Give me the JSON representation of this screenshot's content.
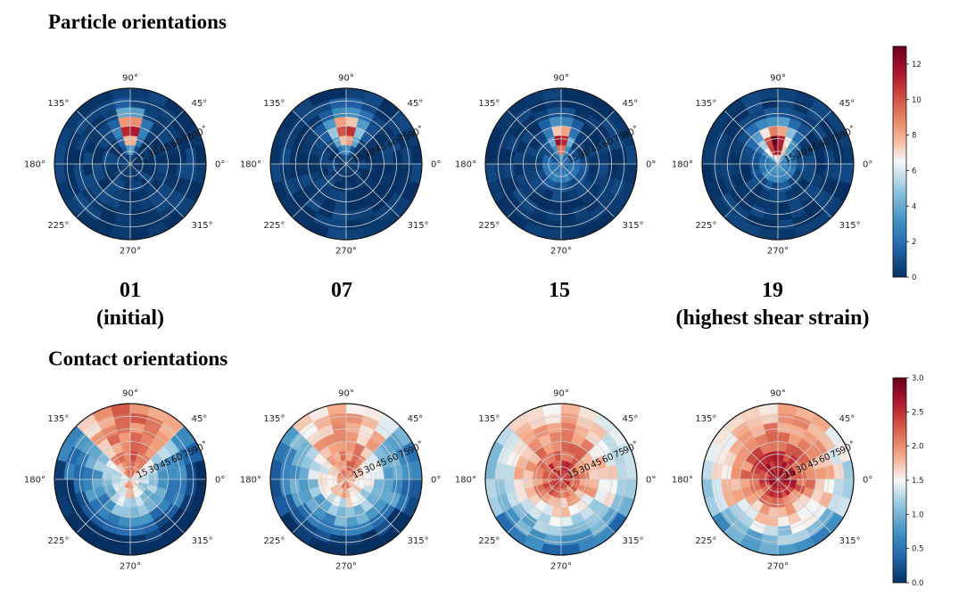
{
  "sections": [
    {
      "title": "Particle orientations"
    },
    {
      "title": "Contact orientations"
    }
  ],
  "run_labels": [
    {
      "id": "01",
      "note": "(initial)"
    },
    {
      "id": "07",
      "note": ""
    },
    {
      "id": "15",
      "note": ""
    },
    {
      "id": "19",
      "note": "(highest shear strain)"
    }
  ],
  "colors": {
    "colormap": "RdBu_r",
    "low": "#053061",
    "mid": "#f7f7f7",
    "high": "#67001f",
    "grid": "#cfcfcf"
  },
  "chart_data": [
    {
      "type": "heatmap",
      "projection": "polar",
      "group": "Particle orientations",
      "panels": [
        "01",
        "07",
        "15",
        "19"
      ],
      "azimuth_tick_labels": [
        "0°",
        "45°",
        "90°",
        "135°",
        "180°",
        "225°",
        "270°",
        "315°"
      ],
      "radial_tick_labels": [
        "15",
        "30",
        "45",
        "60",
        "75",
        "90˚"
      ],
      "radial_range": [
        0,
        90
      ],
      "colorbar": {
        "range": [
          0,
          13
        ],
        "ticks": [
          0,
          2,
          4,
          6,
          8,
          10,
          12
        ]
      },
      "grid": true
    },
    {
      "type": "heatmap",
      "projection": "polar",
      "group": "Contact orientations",
      "panels": [
        "01",
        "07",
        "15",
        "19"
      ],
      "azimuth_tick_labels": [
        "0°",
        "45°",
        "90°",
        "135°",
        "180°",
        "225°",
        "270°",
        "315°"
      ],
      "radial_tick_labels": [
        "15",
        "30",
        "45",
        "60",
        "75",
        "90˚"
      ],
      "radial_range": [
        0,
        90
      ],
      "colorbar": {
        "range": [
          0,
          3
        ],
        "ticks": [
          "0.0",
          "0.5",
          "1.0",
          "1.5",
          "2.0",
          "2.5",
          "3.0"
        ]
      },
      "grid": true
    }
  ]
}
